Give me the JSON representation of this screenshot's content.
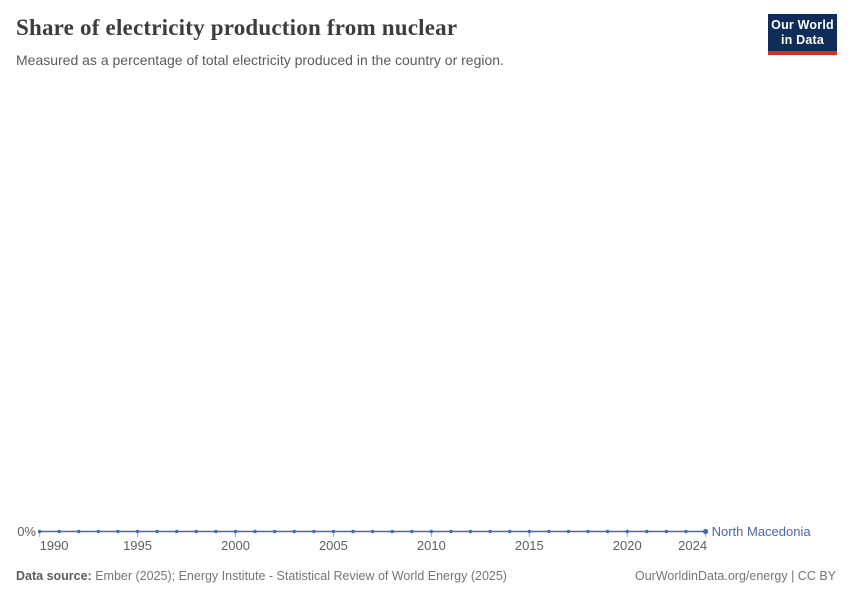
{
  "header": {
    "title": "Share of electricity production from nuclear",
    "subtitle": "Measured as a percentage of total electricity produced in the country or region.",
    "logo": {
      "line1": "Our World",
      "line2": "in Data",
      "bg_color": "#102D5A",
      "bar_color": "#D8301F"
    }
  },
  "chart_data": {
    "type": "line",
    "title": "Share of electricity production from nuclear",
    "subtitle": "Measured as a percentage of total electricity produced in the country or region.",
    "x": [
      1990,
      1991,
      1992,
      1993,
      1994,
      1995,
      1996,
      1997,
      1998,
      1999,
      2000,
      2001,
      2002,
      2003,
      2004,
      2005,
      2006,
      2007,
      2008,
      2009,
      2010,
      2011,
      2012,
      2013,
      2014,
      2015,
      2016,
      2017,
      2018,
      2019,
      2020,
      2021,
      2022,
      2023,
      2024
    ],
    "series": [
      {
        "name": "North Macedonia",
        "color": "#4668AE",
        "values": [
          0,
          0,
          0,
          0,
          0,
          0,
          0,
          0,
          0,
          0,
          0,
          0,
          0,
          0,
          0,
          0,
          0,
          0,
          0,
          0,
          0,
          0,
          0,
          0,
          0,
          0,
          0,
          0,
          0,
          0,
          0,
          0,
          0,
          0,
          0
        ]
      }
    ],
    "x_tick_labels": [
      "1990",
      "1995",
      "2000",
      "2005",
      "2010",
      "2015",
      "2020",
      "2024"
    ],
    "y_tick_labels": [
      "0%"
    ],
    "xlabel": "",
    "ylabel": "",
    "xlim": [
      1990,
      2024
    ],
    "grid": false,
    "legend_position": "right-of-line-end",
    "marker": "dot-every-year"
  },
  "footer": {
    "source_label": "Data source:",
    "source_text": " Ember (2025); Energy Institute - Statistical Review of World Energy (2025)",
    "link_text": "OurWorldinData.org/energy | CC BY"
  }
}
